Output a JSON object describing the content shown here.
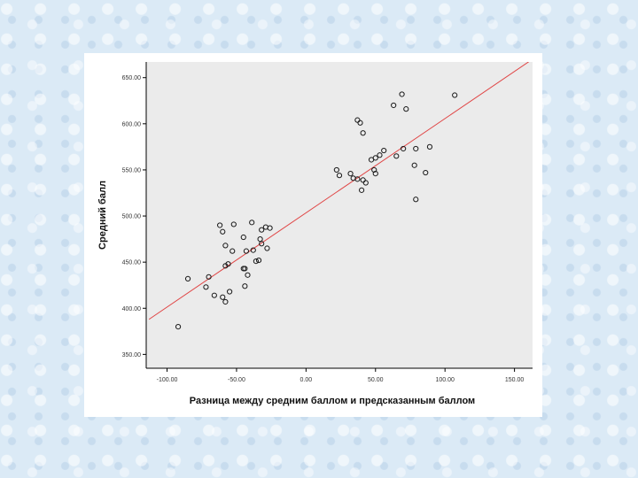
{
  "chart_data": {
    "type": "scatter",
    "xlabel": "Разница между средним баллом и предсказанным баллом",
    "ylabel": "Средний балл",
    "xlim": [
      -115,
      163
    ],
    "ylim": [
      335,
      667
    ],
    "x_ticks": [
      -100,
      -50,
      0,
      50,
      100,
      150
    ],
    "x_tick_labels": [
      "-100.00",
      "-50.00",
      "0.00",
      "50.00",
      "100.00",
      "150.00"
    ],
    "y_ticks": [
      350,
      400,
      450,
      500,
      550,
      600,
      650
    ],
    "y_tick_labels": [
      "350.00",
      "400.00",
      "450.00",
      "500.00",
      "550.00",
      "600.00",
      "650.00"
    ],
    "grid": false,
    "background": "#ebebeb",
    "point_color": "#1a1a1a",
    "trend_color": "#e04545",
    "trend_line": {
      "x": [
        -113,
        162
      ],
      "y": [
        388,
        669
      ]
    },
    "points": [
      {
        "x": -92,
        "y": 380
      },
      {
        "x": -85,
        "y": 432
      },
      {
        "x": -72,
        "y": 423
      },
      {
        "x": -70,
        "y": 434
      },
      {
        "x": -66,
        "y": 414
      },
      {
        "x": -62,
        "y": 490
      },
      {
        "x": -60,
        "y": 483
      },
      {
        "x": -60,
        "y": 412
      },
      {
        "x": -58,
        "y": 468
      },
      {
        "x": -58,
        "y": 446
      },
      {
        "x": -58,
        "y": 407
      },
      {
        "x": -56,
        "y": 448
      },
      {
        "x": -55,
        "y": 418
      },
      {
        "x": -52,
        "y": 491
      },
      {
        "x": -53,
        "y": 462
      },
      {
        "x": -45,
        "y": 477
      },
      {
        "x": -45,
        "y": 443
      },
      {
        "x": -44,
        "y": 443
      },
      {
        "x": -44,
        "y": 424
      },
      {
        "x": -43,
        "y": 462
      },
      {
        "x": -42,
        "y": 436
      },
      {
        "x": -39,
        "y": 493
      },
      {
        "x": -38,
        "y": 463
      },
      {
        "x": -36,
        "y": 451
      },
      {
        "x": -34,
        "y": 452
      },
      {
        "x": -33,
        "y": 475
      },
      {
        "x": -32,
        "y": 485
      },
      {
        "x": -32,
        "y": 470
      },
      {
        "x": -29,
        "y": 488
      },
      {
        "x": -28,
        "y": 465
      },
      {
        "x": -26,
        "y": 487
      },
      {
        "x": 22,
        "y": 550
      },
      {
        "x": 24,
        "y": 544
      },
      {
        "x": 32,
        "y": 546
      },
      {
        "x": 34,
        "y": 541
      },
      {
        "x": 37,
        "y": 604
      },
      {
        "x": 37,
        "y": 540
      },
      {
        "x": 39,
        "y": 601
      },
      {
        "x": 40,
        "y": 528
      },
      {
        "x": 41,
        "y": 539
      },
      {
        "x": 41,
        "y": 590
      },
      {
        "x": 43,
        "y": 536
      },
      {
        "x": 47,
        "y": 561
      },
      {
        "x": 49,
        "y": 550
      },
      {
        "x": 50,
        "y": 546
      },
      {
        "x": 50,
        "y": 563
      },
      {
        "x": 53,
        "y": 566
      },
      {
        "x": 56,
        "y": 571
      },
      {
        "x": 63,
        "y": 620
      },
      {
        "x": 65,
        "y": 565
      },
      {
        "x": 69,
        "y": 632
      },
      {
        "x": 70,
        "y": 573
      },
      {
        "x": 72,
        "y": 616
      },
      {
        "x": 78,
        "y": 555
      },
      {
        "x": 79,
        "y": 573
      },
      {
        "x": 79,
        "y": 518
      },
      {
        "x": 86,
        "y": 547
      },
      {
        "x": 89,
        "y": 575
      },
      {
        "x": 107,
        "y": 631
      }
    ]
  }
}
